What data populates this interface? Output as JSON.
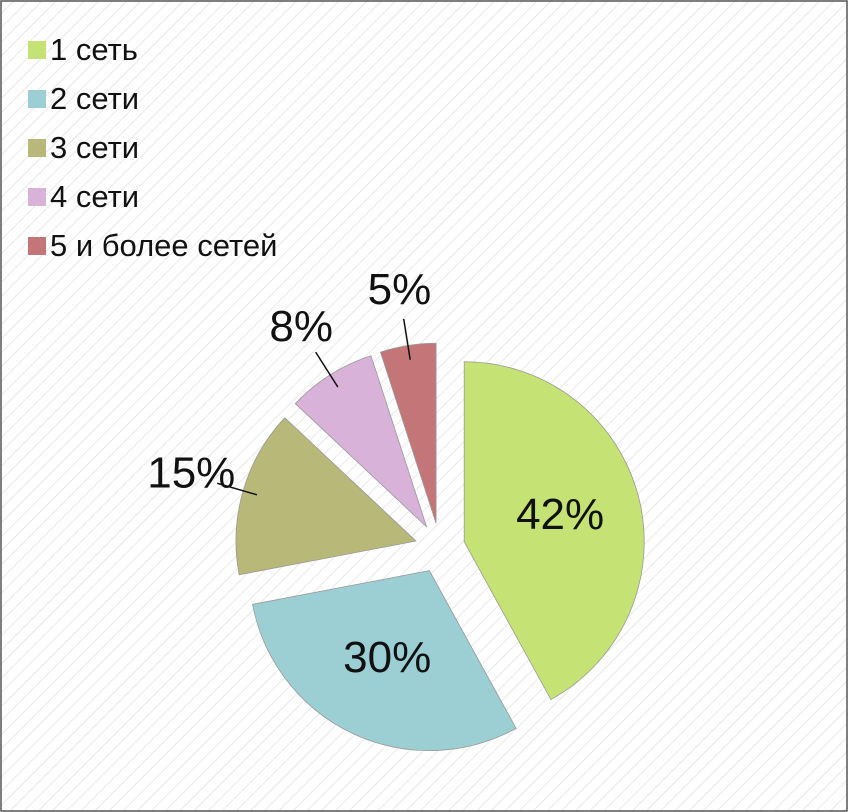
{
  "chart_data": {
    "type": "pie",
    "categories": [
      "1 сеть",
      "2 сети",
      "3 сети",
      "4 сети",
      "5 и более сетей"
    ],
    "values": [
      42,
      30,
      15,
      8,
      5
    ],
    "value_labels": [
      "42%",
      "30%",
      "15%",
      "8%",
      "5%"
    ],
    "colors": [
      "#c5e374",
      "#9ccfd3",
      "#b8b878",
      "#d8b2d8",
      "#c47577"
    ],
    "legend": "top-left"
  }
}
